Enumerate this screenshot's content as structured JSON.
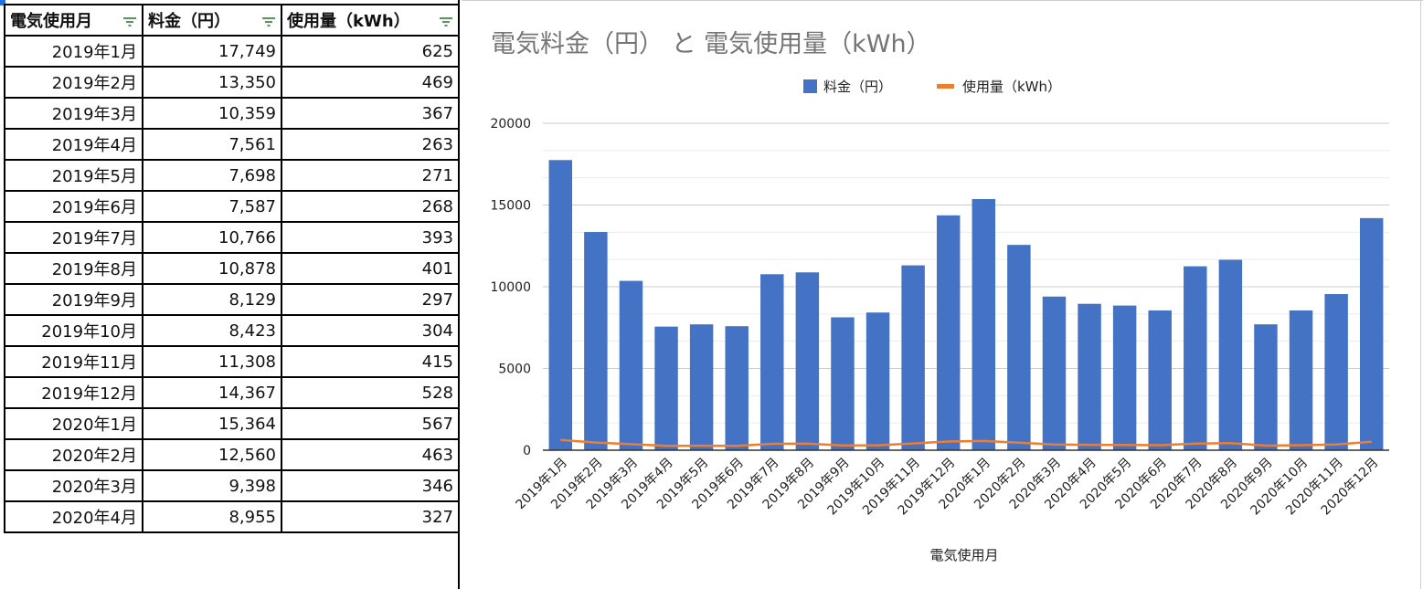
{
  "sheet": {
    "headers": [
      "電気使用月",
      "料金（円）",
      "使用量（kWh）"
    ],
    "rows": [
      [
        "2019年1月",
        "17,749",
        "625"
      ],
      [
        "2019年2月",
        "13,350",
        "469"
      ],
      [
        "2019年3月",
        "10,359",
        "367"
      ],
      [
        "2019年4月",
        "7,561",
        "263"
      ],
      [
        "2019年5月",
        "7,698",
        "271"
      ],
      [
        "2019年6月",
        "7,587",
        "268"
      ],
      [
        "2019年7月",
        "10,766",
        "393"
      ],
      [
        "2019年8月",
        "10,878",
        "401"
      ],
      [
        "2019年9月",
        "8,129",
        "297"
      ],
      [
        "2019年10月",
        "8,423",
        "304"
      ],
      [
        "2019年11月",
        "11,308",
        "415"
      ],
      [
        "2019年12月",
        "14,367",
        "528"
      ],
      [
        "2020年1月",
        "15,364",
        "567"
      ],
      [
        "2020年2月",
        "12,560",
        "463"
      ],
      [
        "2020年3月",
        "9,398",
        "346"
      ],
      [
        "2020年4月",
        "8,955",
        "327"
      ]
    ],
    "filter_icon_color": "#2e7d32",
    "selection_color": "#1a73e8"
  },
  "chart_data": {
    "type": "bar",
    "title": "電気料金（円） と 電気使用量（kWh）",
    "xlabel": "電気使用月",
    "ylabel": "",
    "ylim": [
      0,
      20000
    ],
    "yticks": [
      0,
      5000,
      10000,
      15000,
      20000
    ],
    "grid": true,
    "legend_position": "top-center",
    "categories": [
      "2019年1月",
      "2019年2月",
      "2019年3月",
      "2019年4月",
      "2019年5月",
      "2019年6月",
      "2019年7月",
      "2019年8月",
      "2019年9月",
      "2019年10月",
      "2019年11月",
      "2019年12月",
      "2020年1月",
      "2020年2月",
      "2020年3月",
      "2020年4月",
      "2020年5月",
      "2020年6月",
      "2020年7月",
      "2020年8月",
      "2020年9月",
      "2020年10月",
      "2020年11月",
      "2020年12月"
    ],
    "series": [
      {
        "name": "料金（円）",
        "type": "bar",
        "color": "#4472c4",
        "values": [
          17749,
          13350,
          10359,
          7561,
          7698,
          7587,
          10766,
          10878,
          8129,
          8423,
          11308,
          14367,
          15364,
          12560,
          9398,
          8955,
          8850,
          8550,
          11250,
          11650,
          7700,
          8550,
          9550,
          14200
        ]
      },
      {
        "name": "使用量（kWh）",
        "type": "line",
        "color": "#ed7d31",
        "values": [
          625,
          469,
          367,
          263,
          271,
          268,
          393,
          401,
          297,
          304,
          415,
          528,
          567,
          463,
          346,
          327,
          320,
          310,
          410,
          430,
          280,
          310,
          350,
          520
        ]
      }
    ]
  }
}
